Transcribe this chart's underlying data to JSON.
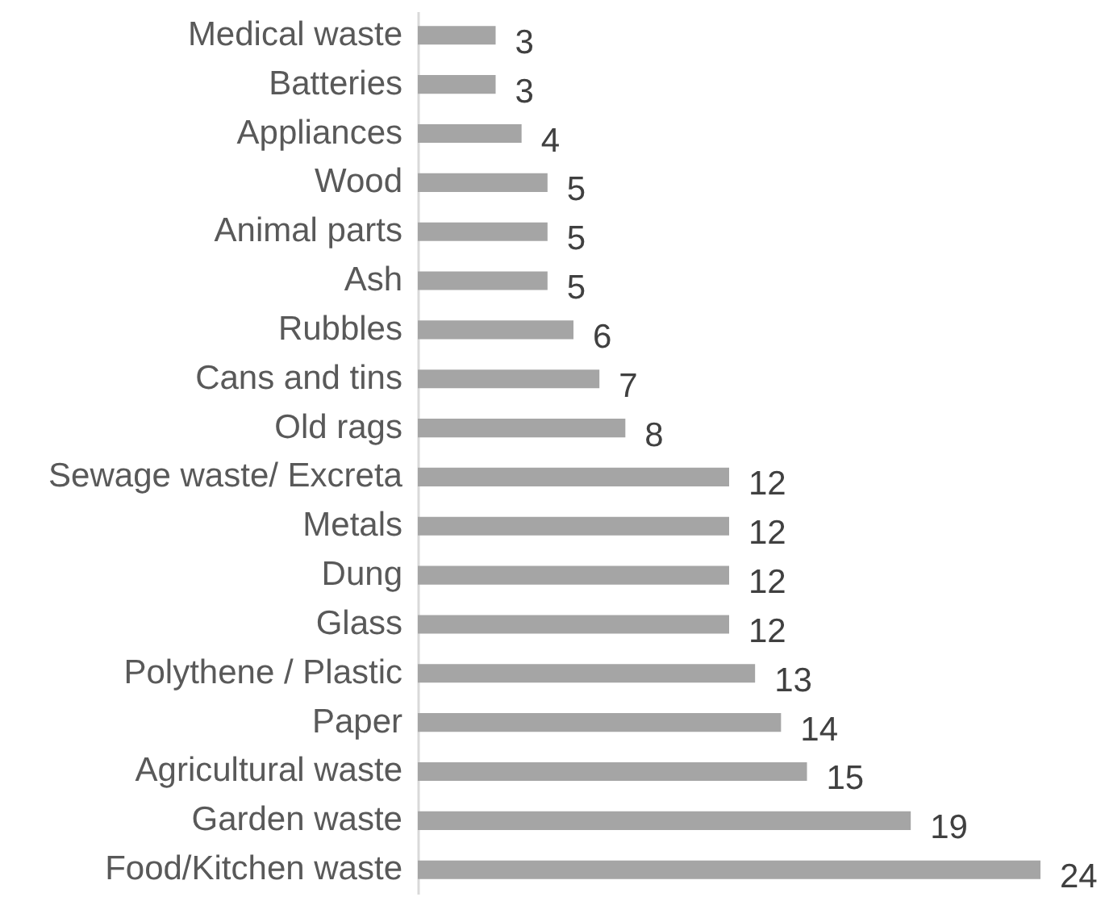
{
  "chart_data": {
    "type": "bar",
    "orientation": "horizontal",
    "categories": [
      "Medical waste",
      "Batteries",
      "Appliances",
      "Wood",
      "Animal parts",
      "Ash",
      "Rubbles",
      "Cans and tins",
      "Old rags",
      "Sewage waste/ Excreta",
      "Metals",
      "Dung",
      "Glass",
      "Polythene / Plastic",
      "Paper",
      "Agricultural waste",
      "Garden waste",
      "Food/Kitchen waste"
    ],
    "values": [
      3,
      3,
      4,
      5,
      5,
      5,
      6,
      7,
      8,
      12,
      12,
      12,
      12,
      13,
      14,
      15,
      19,
      24
    ],
    "color": "#a5a5a5",
    "data_labels": true
  }
}
